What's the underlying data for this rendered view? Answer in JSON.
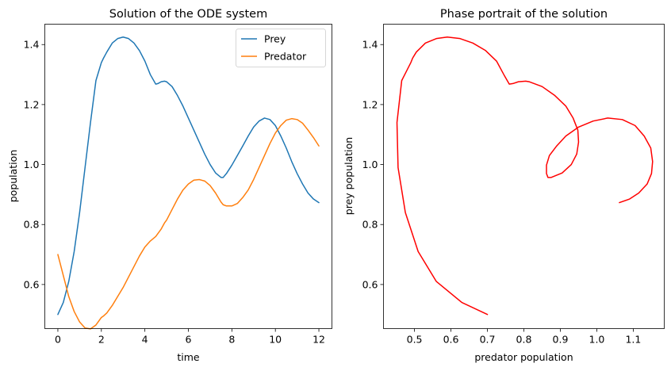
{
  "colors": {
    "prey": "#1f77b4",
    "predator": "#ff7f0e",
    "phase": "#ff0000"
  },
  "chart_data": [
    {
      "type": "line",
      "title": "Solution of the ODE system",
      "xlabel": "time",
      "ylabel": "population",
      "xlim": [
        -0.6,
        12.6
      ],
      "ylim": [
        0.453,
        1.468
      ],
      "xticks": [
        "0",
        "2",
        "4",
        "6",
        "8",
        "10",
        "12"
      ],
      "yticks": [
        "0.6",
        "0.8",
        "1.0",
        "1.2",
        "1.4"
      ],
      "grid": false,
      "legend": "top-right",
      "x": [
        0,
        0.25,
        0.5,
        0.75,
        1.0,
        1.25,
        1.5,
        1.75,
        2.0,
        2.1,
        2.25,
        2.5,
        2.75,
        3.0,
        3.25,
        3.5,
        3.75,
        4.0,
        4.25,
        4.5,
        4.6,
        4.75,
        4.9,
        5.0,
        5.25,
        5.5,
        5.75,
        6.0,
        6.25,
        6.5,
        6.75,
        7.0,
        7.25,
        7.5,
        7.6,
        7.75,
        8.0,
        8.25,
        8.5,
        8.75,
        9.0,
        9.25,
        9.5,
        9.75,
        10.0,
        10.25,
        10.5,
        10.75,
        11.0,
        11.25,
        11.5,
        11.75,
        12.0
      ],
      "series": [
        {
          "name": "Prey",
          "values": [
            0.5,
            0.54,
            0.61,
            0.71,
            0.84,
            0.99,
            1.14,
            1.28,
            1.34,
            1.355,
            1.375,
            1.405,
            1.42,
            1.425,
            1.42,
            1.405,
            1.38,
            1.345,
            1.3,
            1.268,
            1.27,
            1.276,
            1.278,
            1.276,
            1.26,
            1.23,
            1.195,
            1.155,
            1.115,
            1.075,
            1.035,
            1.0,
            0.972,
            0.957,
            0.957,
            0.97,
            0.998,
            1.03,
            1.062,
            1.095,
            1.125,
            1.145,
            1.155,
            1.15,
            1.13,
            1.095,
            1.055,
            1.01,
            0.97,
            0.935,
            0.905,
            0.885,
            0.873
          ]
        },
        {
          "name": "Predator",
          "values": [
            0.7,
            0.63,
            0.56,
            0.51,
            0.475,
            0.455,
            0.452,
            0.465,
            0.49,
            0.495,
            0.505,
            0.53,
            0.56,
            0.59,
            0.625,
            0.66,
            0.695,
            0.725,
            0.745,
            0.76,
            0.77,
            0.785,
            0.805,
            0.815,
            0.85,
            0.885,
            0.915,
            0.935,
            0.948,
            0.95,
            0.945,
            0.93,
            0.905,
            0.875,
            0.866,
            0.862,
            0.862,
            0.87,
            0.89,
            0.915,
            0.95,
            0.99,
            1.03,
            1.07,
            1.105,
            1.13,
            1.148,
            1.153,
            1.15,
            1.138,
            1.115,
            1.09,
            1.062
          ]
        }
      ]
    },
    {
      "type": "line",
      "title": "Phase portrait of the solution",
      "xlabel": "predator population",
      "ylabel": "prey population",
      "xlim": [
        0.415,
        1.185
      ],
      "ylim": [
        0.453,
        1.468
      ],
      "xticks": [
        "0.5",
        "0.6",
        "0.7",
        "0.8",
        "0.9",
        "1.0",
        "1.1"
      ],
      "yticks": [
        "0.6",
        "0.8",
        "1.0",
        "1.2",
        "1.4"
      ],
      "grid": false,
      "series": [
        {
          "x": [
            0.7,
            0.63,
            0.56,
            0.51,
            0.475,
            0.455,
            0.452,
            0.465,
            0.49,
            0.495,
            0.505,
            0.53,
            0.56,
            0.59,
            0.625,
            0.66,
            0.695,
            0.725,
            0.745,
            0.76,
            0.77,
            0.785,
            0.805,
            0.815,
            0.85,
            0.885,
            0.915,
            0.935,
            0.948,
            0.95,
            0.945,
            0.93,
            0.905,
            0.875,
            0.866,
            0.862,
            0.862,
            0.87,
            0.89,
            0.915,
            0.95,
            0.99,
            1.03,
            1.07,
            1.105,
            1.13,
            1.148,
            1.153,
            1.15,
            1.138,
            1.115,
            1.09,
            1.062
          ],
          "y": [
            0.5,
            0.54,
            0.61,
            0.71,
            0.84,
            0.99,
            1.14,
            1.28,
            1.34,
            1.355,
            1.375,
            1.405,
            1.42,
            1.425,
            1.42,
            1.405,
            1.38,
            1.345,
            1.3,
            1.268,
            1.27,
            1.276,
            1.278,
            1.276,
            1.26,
            1.23,
            1.195,
            1.155,
            1.115,
            1.075,
            1.035,
            1.0,
            0.972,
            0.957,
            0.957,
            0.97,
            0.998,
            1.03,
            1.062,
            1.095,
            1.125,
            1.145,
            1.155,
            1.15,
            1.13,
            1.095,
            1.055,
            1.01,
            0.97,
            0.935,
            0.905,
            0.885,
            0.873
          ]
        }
      ]
    }
  ]
}
